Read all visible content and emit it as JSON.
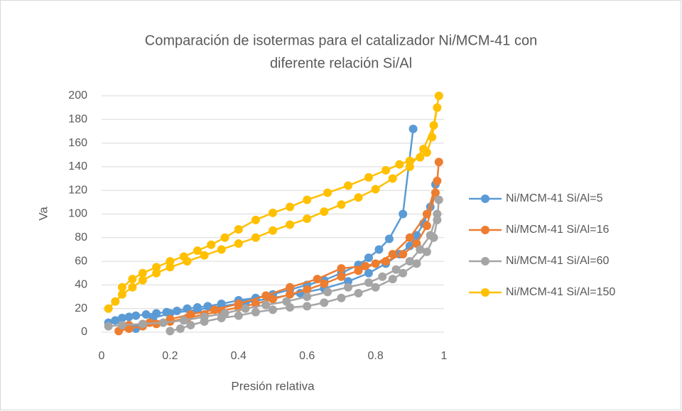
{
  "chart_data": {
    "type": "scatter",
    "title": [
      "Comparación de isotermas para el catalizador Ni/MCM-41 con",
      "diferente relación Si/Al"
    ],
    "xlabel": "Presión relativa",
    "ylabel": "Va",
    "xlim": [
      0,
      1
    ],
    "ylim": [
      0,
      200
    ],
    "xticks": [
      0,
      0.2,
      0.4,
      0.6,
      0.8,
      1
    ],
    "yticks": [
      0,
      20,
      40,
      60,
      80,
      100,
      120,
      140,
      160,
      180,
      200
    ],
    "grid": true,
    "legend": "right",
    "series": [
      {
        "name": "Ni/MCM-41 Si/Al=5",
        "color": "#5b9bd5",
        "x": [
          0.02,
          0.04,
          0.06,
          0.08,
          0.1,
          0.13,
          0.16,
          0.19,
          0.22,
          0.25,
          0.28,
          0.31,
          0.35,
          0.4,
          0.45,
          0.5,
          0.55,
          0.6,
          0.65,
          0.7,
          0.75,
          0.78,
          0.81,
          0.84,
          0.88,
          0.91,
          null,
          0.975,
          0.96,
          0.94,
          0.92,
          0.9,
          0.87,
          0.83,
          0.78,
          0.72,
          0.65,
          0.58,
          0.5,
          0.42,
          0.35,
          0.28,
          0.2,
          0.15,
          0.1
        ],
        "values": [
          8,
          10,
          12,
          13,
          14,
          15,
          16,
          17,
          18,
          20,
          21,
          22,
          24,
          27,
          29,
          32,
          36,
          40,
          44,
          50,
          57,
          63,
          70,
          79,
          100,
          172,
          null,
          125,
          106,
          92,
          82,
          73,
          66,
          58,
          50,
          43,
          37,
          33,
          29,
          25,
          22,
          19,
          16,
          12,
          3
        ]
      },
      {
        "name": "Ni/MCM-41 Si/Al=16",
        "color": "#ed7d31",
        "x": [
          0.05,
          0.08,
          0.12,
          0.16,
          0.2,
          0.25,
          0.3,
          0.35,
          0.4,
          0.45,
          0.5,
          0.55,
          0.6,
          0.65,
          0.7,
          0.75,
          0.8,
          0.85,
          0.9,
          0.95,
          0.98,
          0.985,
          null,
          0.975,
          0.95,
          0.92,
          0.88,
          0.83,
          0.77,
          0.7,
          0.63,
          0.55,
          0.48,
          0.4,
          0.33,
          0.26,
          0.2,
          0.14,
          0.08
        ],
        "values": [
          1,
          3,
          5,
          7,
          9,
          12,
          15,
          18,
          21,
          24,
          28,
          32,
          36,
          41,
          47,
          52,
          58,
          66,
          80,
          100,
          128,
          144,
          null,
          118,
          90,
          75,
          66,
          60,
          56,
          54,
          45,
          38,
          31,
          24,
          19,
          15,
          11,
          8,
          6
        ]
      },
      {
        "name": "Ni/MCM-41 Si/Al=60",
        "color": "#a5a5a5",
        "x": [
          0.2,
          0.23,
          0.26,
          0.3,
          0.35,
          0.4,
          0.45,
          0.5,
          0.55,
          0.6,
          0.65,
          0.7,
          0.75,
          0.8,
          0.85,
          0.88,
          0.92,
          0.95,
          0.97,
          0.98,
          0.985,
          null,
          0.98,
          0.96,
          0.93,
          0.9,
          0.86,
          0.82,
          0.78,
          0.72,
          0.66,
          0.6,
          0.54,
          0.48,
          0.42,
          0.36,
          0.3,
          0.24,
          0.18,
          0.12,
          0.06,
          0.02
        ],
        "values": [
          1,
          3,
          6,
          9,
          12,
          14,
          17,
          19,
          21,
          22,
          25,
          29,
          33,
          38,
          45,
          50,
          58,
          68,
          80,
          95,
          112,
          null,
          100,
          82,
          70,
          60,
          53,
          47,
          42,
          38,
          34,
          30,
          26,
          23,
          20,
          16,
          13,
          10,
          8,
          7,
          6,
          5
        ]
      },
      {
        "name": "Ni/MCM-41 Si/Al=150",
        "color": "#ffc000",
        "x": [
          0.02,
          0.04,
          0.06,
          0.09,
          0.12,
          0.16,
          0.2,
          0.25,
          0.3,
          0.35,
          0.4,
          0.45,
          0.5,
          0.55,
          0.6,
          0.65,
          0.7,
          0.75,
          0.8,
          0.85,
          0.9,
          0.94,
          0.97,
          0.985,
          null,
          0.98,
          0.965,
          0.95,
          0.93,
          0.9,
          0.87,
          0.83,
          0.78,
          0.72,
          0.66,
          0.6,
          0.55,
          0.5,
          0.45,
          0.4,
          0.36,
          0.32,
          0.28,
          0.24,
          0.2,
          0.16,
          0.12,
          0.09,
          0.06
        ],
        "values": [
          20,
          26,
          32,
          38,
          44,
          50,
          55,
          60,
          65,
          70,
          75,
          80,
          86,
          91,
          96,
          102,
          108,
          114,
          121,
          130,
          140,
          155,
          175,
          200,
          null,
          190,
          165,
          152,
          148,
          145,
          142,
          137,
          131,
          124,
          118,
          112,
          106,
          101,
          95,
          87,
          80,
          74,
          69,
          64,
          60,
          55,
          50,
          45,
          38
        ]
      }
    ]
  }
}
